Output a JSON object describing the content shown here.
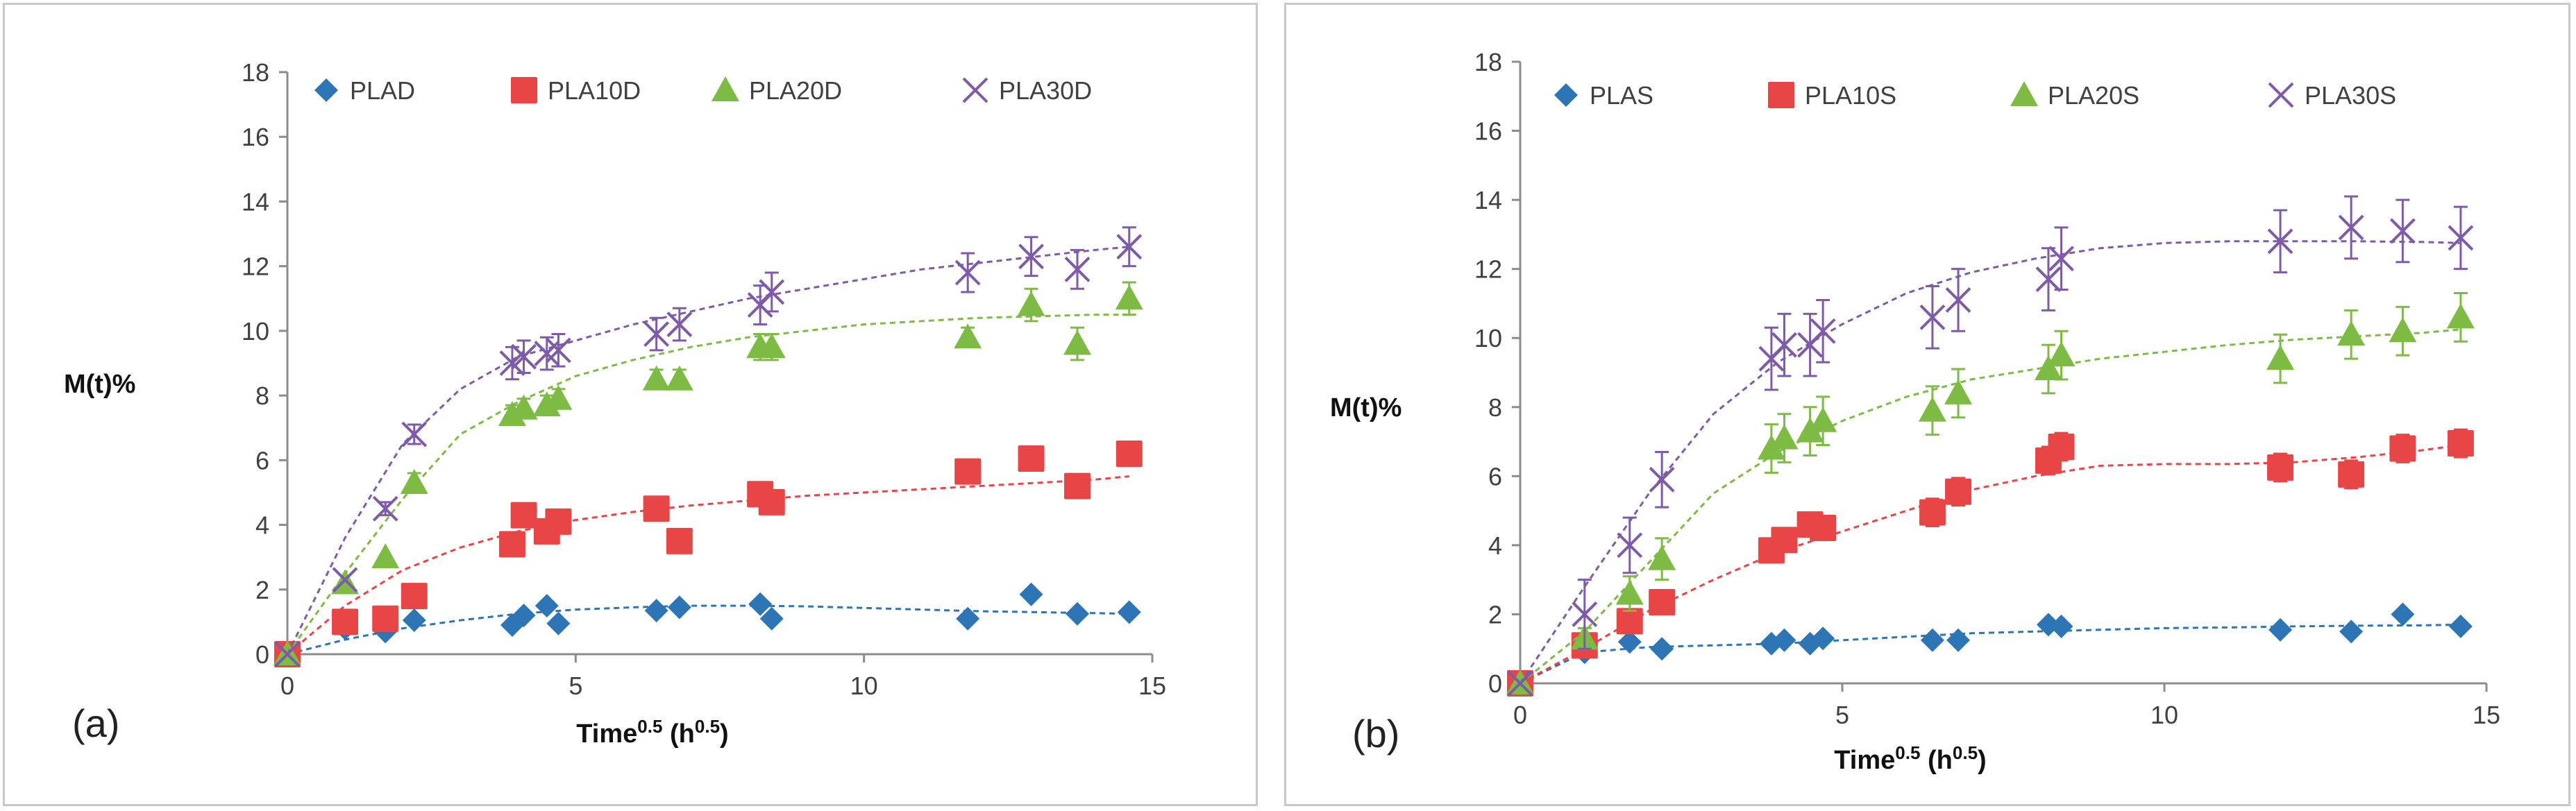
{
  "chart_data": [
    {
      "type": "scatter",
      "panel_label": "(a)",
      "ylabel": "M(t)%",
      "xlabel": {
        "base": "Time",
        "sup": "0.5",
        "unit_open": " (h",
        "unit_sup": "0.5",
        "unit_close": ")"
      },
      "xlim": [
        0,
        15
      ],
      "xticks": [
        0,
        5,
        10,
        15
      ],
      "ylim": [
        0,
        18
      ],
      "yticks": [
        0,
        2,
        4,
        6,
        8,
        10,
        12,
        14,
        16,
        18
      ],
      "legend_position": "top",
      "series": [
        {
          "name": "PLAD",
          "marker": "diamond",
          "color": "#2E75B6",
          "x": [
            0,
            1,
            1.7,
            2.2,
            3.9,
            4.1,
            4.5,
            4.7,
            6.4,
            6.8,
            8.2,
            8.4,
            11.8,
            12.9,
            13.7,
            14.6
          ],
          "y": [
            0,
            0.8,
            0.7,
            1.05,
            0.9,
            1.2,
            1.5,
            0.95,
            1.35,
            1.45,
            1.55,
            1.1,
            1.1,
            1.85,
            1.25,
            1.3
          ],
          "fit_x": [
            0,
            1,
            2,
            3,
            4,
            5,
            6,
            7,
            8,
            9,
            10,
            11,
            12,
            13,
            14,
            14.6
          ],
          "fit_y": [
            0,
            0.45,
            0.8,
            1.05,
            1.25,
            1.38,
            1.45,
            1.5,
            1.5,
            1.48,
            1.43,
            1.38,
            1.33,
            1.3,
            1.27,
            1.25
          ]
        },
        {
          "name": "PLA10D",
          "marker": "square",
          "color": "#E84646",
          "x": [
            0,
            1,
            1.7,
            2.2,
            3.9,
            4.1,
            4.5,
            4.7,
            6.4,
            6.8,
            8.2,
            8.4,
            11.8,
            12.9,
            13.7,
            14.6
          ],
          "y": [
            0,
            1.0,
            1.1,
            1.8,
            3.4,
            4.3,
            3.8,
            4.1,
            4.5,
            3.5,
            4.95,
            4.7,
            5.65,
            6.05,
            5.2,
            6.2
          ],
          "fit_x": [
            0,
            1,
            2,
            3,
            4,
            5,
            6,
            7,
            8,
            9,
            10,
            11,
            12,
            13,
            14,
            14.6
          ],
          "fit_y": [
            0,
            1.5,
            2.6,
            3.3,
            3.8,
            4.15,
            4.4,
            4.6,
            4.75,
            4.9,
            5.0,
            5.1,
            5.2,
            5.3,
            5.4,
            5.5
          ]
        },
        {
          "name": "PLA20D",
          "marker": "triangle",
          "color": "#7DBB45",
          "x": [
            0,
            1,
            1.7,
            2.2,
            3.9,
            4.1,
            4.5,
            4.7,
            6.4,
            6.8,
            8.2,
            8.4,
            11.8,
            12.9,
            13.7,
            14.6
          ],
          "y": [
            0,
            2.2,
            3.0,
            5.3,
            7.4,
            7.6,
            7.7,
            7.9,
            8.5,
            8.5,
            9.5,
            9.5,
            9.8,
            10.8,
            9.6,
            11.0
          ],
          "y_err": [
            0,
            0,
            0,
            0.3,
            0.3,
            0.3,
            0.3,
            0.3,
            0.3,
            0.3,
            0.4,
            0.4,
            0.3,
            0.5,
            0.5,
            0.5
          ],
          "fit_x": [
            0,
            1,
            2,
            3,
            4,
            5,
            6,
            7,
            8,
            9,
            10,
            11,
            12,
            13,
            14,
            14.6
          ],
          "fit_y": [
            0,
            2.5,
            4.8,
            6.8,
            7.8,
            8.6,
            9.1,
            9.5,
            9.8,
            10.0,
            10.2,
            10.3,
            10.4,
            10.45,
            10.5,
            10.5
          ]
        },
        {
          "name": "PLA30D",
          "marker": "x",
          "color": "#7E5BA8",
          "x": [
            0,
            1,
            1.7,
            2.2,
            3.9,
            4.1,
            4.5,
            4.7,
            6.4,
            6.8,
            8.2,
            8.4,
            11.8,
            12.9,
            13.7,
            14.6
          ],
          "y": [
            0,
            2.3,
            4.5,
            6.8,
            9.0,
            9.2,
            9.3,
            9.4,
            9.9,
            10.2,
            10.8,
            11.2,
            11.8,
            12.3,
            11.9,
            12.6
          ],
          "y_err": [
            0,
            0,
            0.2,
            0.3,
            0.5,
            0.5,
            0.5,
            0.5,
            0.5,
            0.5,
            0.6,
            0.6,
            0.6,
            0.6,
            0.6,
            0.6
          ],
          "fit_x": [
            0,
            1,
            2,
            3,
            4,
            5,
            6,
            7,
            8,
            9,
            10,
            11,
            12,
            13,
            14,
            14.6
          ],
          "fit_y": [
            0,
            3.6,
            6.5,
            8.2,
            9.2,
            9.7,
            10.2,
            10.6,
            11.0,
            11.3,
            11.6,
            11.9,
            12.1,
            12.3,
            12.5,
            12.6
          ]
        }
      ]
    },
    {
      "type": "scatter",
      "panel_label": "(b)",
      "ylabel": "M(t)%",
      "xlabel": {
        "base": "Time",
        "sup": "0.5",
        "unit_open": " (h",
        "unit_sup": "0.5",
        "unit_close": ")"
      },
      "xlim": [
        0,
        15
      ],
      "xticks": [
        0,
        5,
        10,
        15
      ],
      "ylim": [
        0,
        18
      ],
      "yticks": [
        0,
        2,
        4,
        6,
        8,
        10,
        12,
        14,
        16,
        18
      ],
      "legend_position": "top",
      "series": [
        {
          "name": "PLAS",
          "marker": "diamond",
          "color": "#2E75B6",
          "x": [
            0,
            1,
            1.7,
            2.2,
            3.9,
            4.1,
            4.5,
            4.7,
            6.4,
            6.8,
            8.2,
            8.4,
            11.8,
            12.9,
            13.7,
            14.6
          ],
          "y": [
            0,
            0.9,
            1.2,
            1.0,
            1.15,
            1.25,
            1.15,
            1.3,
            1.25,
            1.25,
            1.7,
            1.65,
            1.55,
            1.5,
            2.0,
            1.65
          ],
          "fit_x": [
            0,
            1,
            2,
            3,
            4,
            5,
            6,
            7,
            8,
            9,
            10,
            11,
            12,
            13,
            14,
            14.6
          ],
          "fit_y": [
            0,
            0.9,
            1.05,
            1.1,
            1.15,
            1.25,
            1.35,
            1.45,
            1.5,
            1.55,
            1.6,
            1.62,
            1.65,
            1.67,
            1.68,
            1.7
          ]
        },
        {
          "name": "PLA10S",
          "marker": "square",
          "color": "#E84646",
          "x": [
            0,
            1,
            1.7,
            2.2,
            3.9,
            4.1,
            4.5,
            4.7,
            6.4,
            6.8,
            8.2,
            8.4,
            11.8,
            12.9,
            13.7,
            14.6
          ],
          "y": [
            0,
            1.1,
            1.8,
            2.35,
            3.85,
            4.15,
            4.6,
            4.5,
            4.95,
            5.55,
            6.45,
            6.85,
            6.25,
            6.05,
            6.8,
            6.95
          ],
          "y_err": [
            0,
            0,
            0.2,
            0.3,
            0.3,
            0.3,
            0.3,
            0.3,
            0.4,
            0.4,
            0.4,
            0.4,
            0.4,
            0.4,
            0.4,
            0.4
          ],
          "fit_x": [
            0,
            1,
            2,
            3,
            4,
            5,
            6,
            7,
            8,
            9,
            10,
            11,
            12,
            13,
            14,
            14.6
          ],
          "fit_y": [
            0,
            1.0,
            2.1,
            3.0,
            3.8,
            4.4,
            5.0,
            5.6,
            6.0,
            6.3,
            6.35,
            6.35,
            6.4,
            6.55,
            6.75,
            6.9
          ]
        },
        {
          "name": "PLA20S",
          "marker": "triangle",
          "color": "#7DBB45",
          "x": [
            0,
            1,
            1.7,
            2.2,
            3.9,
            4.1,
            4.5,
            4.7,
            6.4,
            6.8,
            8.2,
            8.4,
            11.8,
            12.9,
            13.7,
            14.6
          ],
          "y": [
            0,
            1.3,
            2.6,
            3.6,
            6.8,
            7.1,
            7.3,
            7.6,
            7.9,
            8.4,
            9.1,
            9.5,
            9.4,
            10.1,
            10.2,
            10.6
          ],
          "y_err": [
            0,
            0.3,
            0.5,
            0.6,
            0.7,
            0.7,
            0.7,
            0.7,
            0.7,
            0.7,
            0.7,
            0.7,
            0.7,
            0.7,
            0.7,
            0.7
          ],
          "fit_x": [
            0,
            1,
            2,
            3,
            4,
            5,
            6,
            7,
            8,
            9,
            10,
            11,
            12,
            13,
            14,
            14.6
          ],
          "fit_y": [
            0,
            1.5,
            3.5,
            5.5,
            6.7,
            7.6,
            8.3,
            8.8,
            9.1,
            9.4,
            9.6,
            9.8,
            9.95,
            10.05,
            10.15,
            10.25
          ]
        },
        {
          "name": "PLA30S",
          "marker": "x",
          "color": "#7E5BA8",
          "x": [
            0,
            1,
            1.7,
            2.2,
            3.9,
            4.1,
            4.5,
            4.7,
            6.4,
            6.8,
            8.2,
            8.4,
            11.8,
            12.9,
            13.7,
            14.6
          ],
          "y": [
            0,
            2.0,
            4.0,
            5.9,
            9.4,
            9.8,
            9.8,
            10.2,
            10.6,
            11.1,
            11.7,
            12.3,
            12.8,
            13.2,
            13.1,
            12.9
          ],
          "y_err": [
            0,
            1.0,
            0.8,
            0.8,
            0.9,
            0.9,
            0.9,
            0.9,
            0.9,
            0.9,
            0.9,
            0.9,
            0.9,
            0.9,
            0.9,
            0.9
          ],
          "fit_x": [
            0,
            1,
            2,
            3,
            4,
            5,
            6,
            7,
            8,
            9,
            10,
            11,
            12,
            13,
            14,
            14.6
          ],
          "fit_y": [
            0,
            2.8,
            5.5,
            7.8,
            9.3,
            10.4,
            11.3,
            11.9,
            12.3,
            12.6,
            12.75,
            12.8,
            12.8,
            12.8,
            12.78,
            12.75
          ]
        }
      ]
    }
  ]
}
